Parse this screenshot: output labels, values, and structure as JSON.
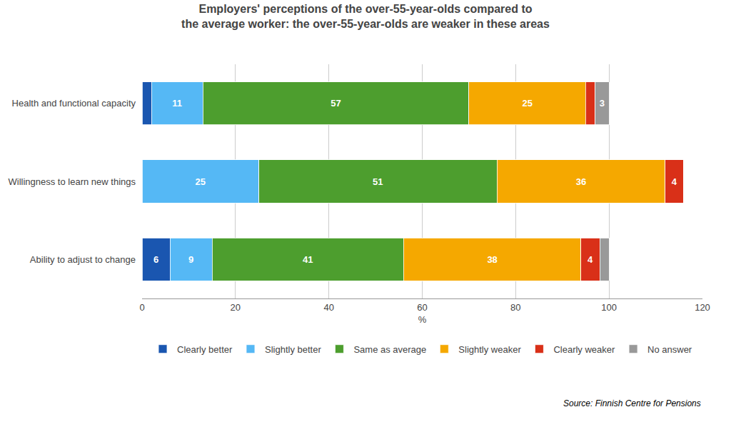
{
  "chart_data": {
    "type": "bar",
    "orientation": "horizontal",
    "stacked": true,
    "title": "Employers' perceptions of the over-55-year-olds compared to\nthe average worker: the over-55-year-olds are weaker in these areas",
    "categories": [
      "Health and functional capacity",
      "Willingness to learn new things",
      "Ability to adjust to change"
    ],
    "series": [
      {
        "name": "Clearly better",
        "color": "#1a56b0",
        "values": [
          2,
          0,
          6
        ],
        "value_labels": [
          null,
          null,
          "6"
        ]
      },
      {
        "name": "Slightly better",
        "color": "#55b8f5",
        "values": [
          11,
          25,
          9
        ],
        "value_labels": [
          "11",
          "25",
          "9"
        ]
      },
      {
        "name": "Same as average",
        "color": "#4d9e2e",
        "values": [
          57,
          51,
          41
        ],
        "value_labels": [
          "57",
          "51",
          "41"
        ]
      },
      {
        "name": "Slightly weaker",
        "color": "#f5a800",
        "values": [
          25,
          36,
          38
        ],
        "value_labels": [
          "25",
          "36",
          "38"
        ]
      },
      {
        "name": "Clearly weaker",
        "color": "#d93018",
        "values": [
          2,
          4,
          4
        ],
        "value_labels": [
          null,
          "4",
          "4"
        ]
      },
      {
        "name": "No answer",
        "color": "#999999",
        "values": [
          3,
          0,
          2
        ],
        "value_labels": [
          "3",
          null,
          null
        ]
      }
    ],
    "xlabel": "%",
    "xlim": [
      0,
      120
    ],
    "xticks": [
      0,
      20,
      40,
      60,
      80,
      100,
      120
    ],
    "grid": true,
    "legend": "bottom",
    "data_labels": true,
    "annotations": [
      "Source: Finnish Centre for Pensions"
    ]
  }
}
